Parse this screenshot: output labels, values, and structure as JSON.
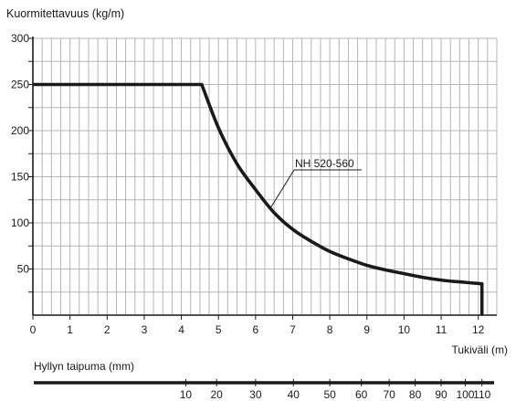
{
  "chart_data": {
    "type": "line",
    "title": "",
    "ylabel": "Kuormitettavuus (kg/m)",
    "xlabel": "Tukiväli (m)",
    "xlim": [
      0,
      12.5
    ],
    "ylim": [
      0,
      300
    ],
    "grid": true,
    "x_ticks": [
      "0",
      "1",
      "2",
      "3",
      "4",
      "5",
      "6",
      "7",
      "8",
      "9",
      "10",
      "11",
      "12"
    ],
    "y_ticks": [
      "50",
      "100",
      "150",
      "200",
      "250",
      "300"
    ],
    "series": [
      {
        "name": "NH 520-560",
        "color": "#1a1a1a",
        "points": [
          [
            0,
            250
          ],
          [
            4.55,
            250
          ],
          [
            5.0,
            203
          ],
          [
            5.5,
            164
          ],
          [
            6.0,
            136
          ],
          [
            6.5,
            111
          ],
          [
            7.0,
            93
          ],
          [
            7.5,
            80
          ],
          [
            8.0,
            69
          ],
          [
            8.5,
            61
          ],
          [
            9.0,
            54
          ],
          [
            9.5,
            49
          ],
          [
            10.0,
            45
          ],
          [
            10.5,
            41
          ],
          [
            11.0,
            38
          ],
          [
            11.5,
            36
          ],
          [
            12.1,
            34
          ],
          [
            12.1,
            0
          ]
        ]
      }
    ],
    "annotation": {
      "text": "NH 520-560",
      "points_to": [
        6.4,
        116
      ]
    },
    "secondary_axis": {
      "label": "Hyllyn taipuma (mm)",
      "ticks": [
        "10",
        "20",
        "30",
        "40",
        "50",
        "60",
        "70",
        "80",
        "90",
        "100",
        "110"
      ],
      "tick_positions_x": [
        4.12,
        4.95,
        6.0,
        7.02,
        8.0,
        8.85,
        9.6,
        10.3,
        11.0,
        11.65,
        12.1
      ]
    }
  }
}
